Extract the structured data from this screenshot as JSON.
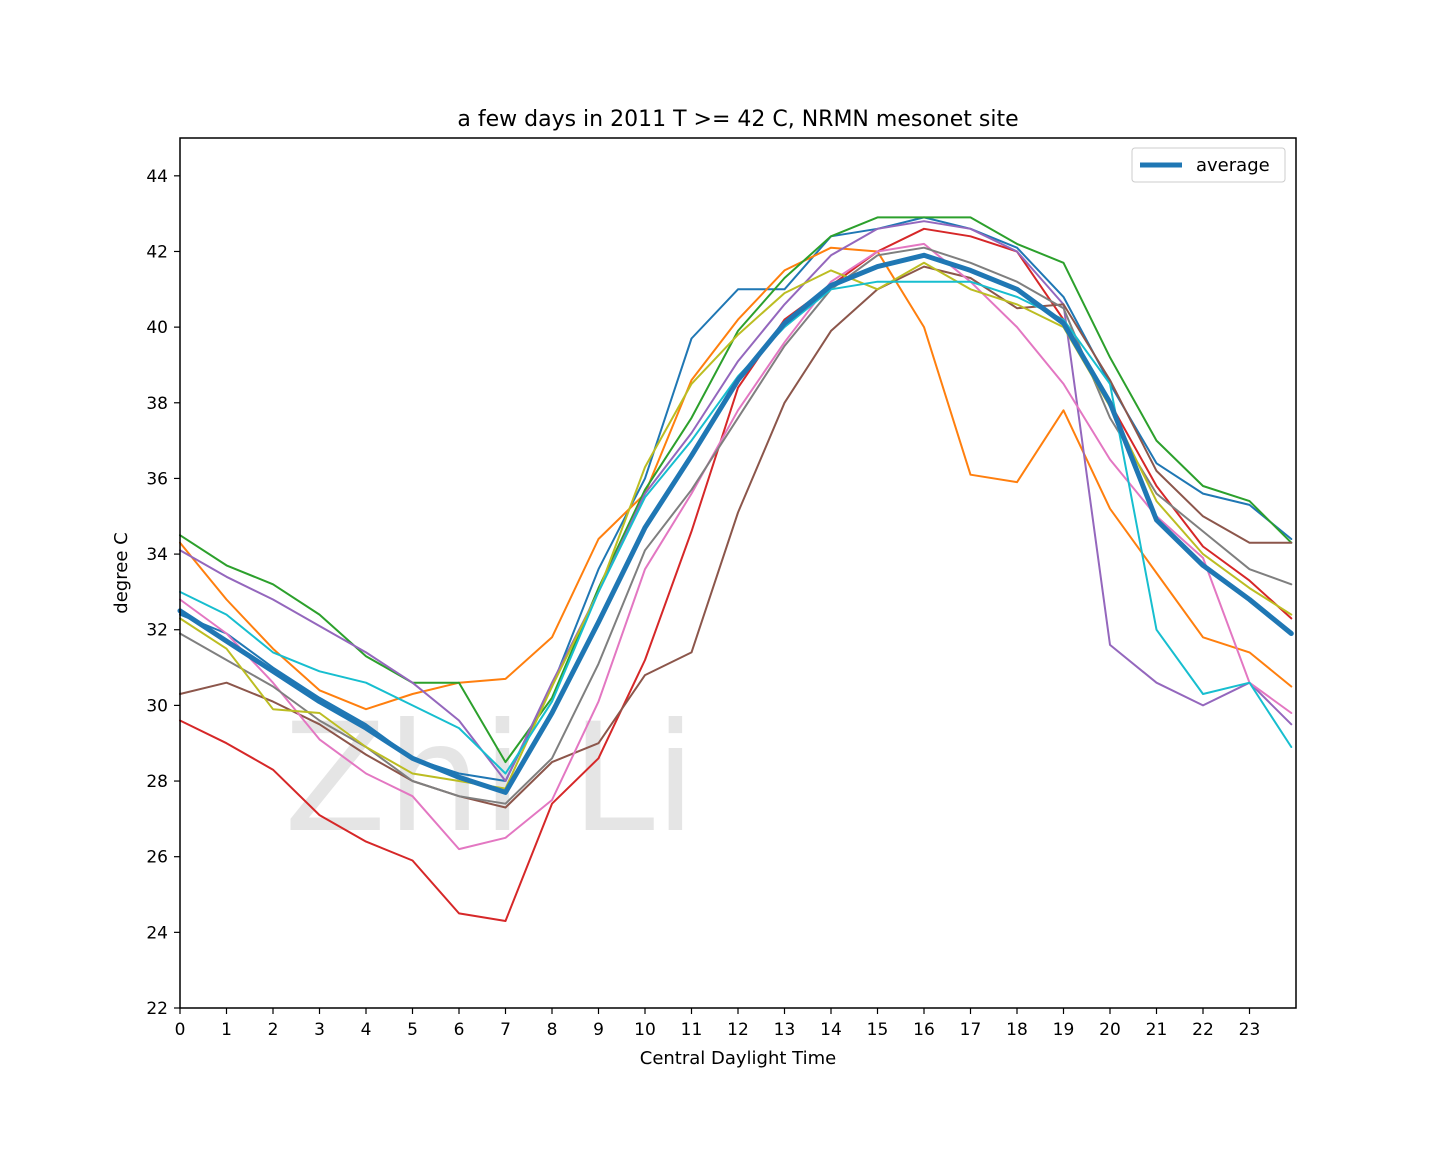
{
  "chart_data": {
    "type": "line",
    "title": "a few days in 2011 T >= 42 C, NRMN mesonet site",
    "xlabel": "Central Daylight Time",
    "ylabel": "degree C",
    "xlim": [
      0,
      24
    ],
    "ylim": [
      22,
      45
    ],
    "xticks": [
      0,
      1,
      2,
      3,
      4,
      5,
      6,
      7,
      8,
      9,
      10,
      11,
      12,
      13,
      14,
      15,
      16,
      17,
      18,
      19,
      20,
      21,
      22,
      23
    ],
    "yticks": [
      22,
      24,
      26,
      28,
      30,
      32,
      34,
      36,
      38,
      40,
      42,
      44
    ],
    "grid": false,
    "legend": {
      "position": "top-right",
      "entries": [
        "average"
      ]
    },
    "watermark": "Zhi Li",
    "x": [
      0,
      1,
      2,
      3,
      4,
      5,
      6,
      7,
      8,
      9,
      10,
      11,
      12,
      13,
      14,
      15,
      16,
      17,
      18,
      19,
      20,
      21,
      22,
      23,
      23.9
    ],
    "series": [
      {
        "color": "#1f77b4",
        "width": 2,
        "values": [
          32.4,
          31.9,
          31.0,
          30.2,
          29.5,
          28.6,
          28.2,
          28.0,
          30.5,
          33.6,
          36.0,
          39.7,
          41.0,
          41.0,
          42.4,
          42.6,
          42.9,
          42.6,
          42.1,
          40.8,
          38.5,
          36.4,
          35.6,
          35.3,
          34.4
        ]
      },
      {
        "color": "#ff7f0e",
        "width": 2,
        "values": [
          34.3,
          32.8,
          31.5,
          30.4,
          29.9,
          30.3,
          30.6,
          30.7,
          31.8,
          34.4,
          35.6,
          38.6,
          40.2,
          41.5,
          42.1,
          42.0,
          40.0,
          36.1,
          35.9,
          37.8,
          35.2,
          33.5,
          31.8,
          31.4,
          30.5
        ]
      },
      {
        "color": "#2ca02c",
        "width": 2,
        "values": [
          34.5,
          33.7,
          33.2,
          32.4,
          31.3,
          30.6,
          30.6,
          28.5,
          30.2,
          33.1,
          35.7,
          37.6,
          39.9,
          41.3,
          42.4,
          42.9,
          42.9,
          42.9,
          42.2,
          41.7,
          39.2,
          37.0,
          35.8,
          35.4,
          34.3
        ]
      },
      {
        "color": "#d62728",
        "width": 2,
        "values": [
          29.6,
          29.0,
          28.3,
          27.1,
          26.4,
          25.9,
          24.5,
          24.3,
          27.4,
          28.6,
          31.2,
          34.6,
          38.4,
          40.2,
          41.1,
          42.0,
          42.6,
          42.4,
          42.0,
          40.2,
          38.0,
          35.8,
          34.2,
          33.3,
          32.3
        ]
      },
      {
        "color": "#9467bd",
        "width": 2,
        "values": [
          34.1,
          33.4,
          32.8,
          32.1,
          31.4,
          30.6,
          29.6,
          28.0,
          30.6,
          33.0,
          35.6,
          37.2,
          39.1,
          40.6,
          41.9,
          42.6,
          42.8,
          42.6,
          42.0,
          40.6,
          31.6,
          30.6,
          30.0,
          30.6,
          29.5
        ]
      },
      {
        "color": "#8c564b",
        "width": 2,
        "values": [
          30.3,
          30.6,
          30.1,
          29.5,
          28.7,
          28.0,
          27.6,
          27.3,
          28.5,
          29.0,
          30.8,
          31.4,
          35.1,
          38.0,
          39.9,
          41.0,
          41.6,
          41.3,
          40.5,
          40.6,
          38.6,
          36.2,
          35.0,
          34.3,
          34.3
        ]
      },
      {
        "color": "#e377c2",
        "width": 2,
        "values": [
          32.8,
          31.9,
          30.6,
          29.1,
          28.2,
          27.6,
          26.2,
          26.5,
          27.5,
          30.1,
          33.6,
          35.6,
          37.8,
          39.6,
          41.2,
          42.0,
          42.2,
          41.2,
          40.0,
          38.5,
          36.5,
          35.0,
          33.9,
          30.6,
          29.8
        ]
      },
      {
        "color": "#7f7f7f",
        "width": 2,
        "values": [
          31.9,
          31.2,
          30.5,
          29.6,
          28.9,
          28.0,
          27.6,
          27.4,
          28.6,
          31.1,
          34.1,
          35.7,
          37.6,
          39.5,
          41.0,
          41.9,
          42.1,
          41.7,
          41.2,
          40.5,
          37.6,
          35.6,
          34.6,
          33.6,
          33.2
        ]
      },
      {
        "color": "#bcbd22",
        "width": 2,
        "values": [
          32.3,
          31.5,
          29.9,
          29.8,
          28.9,
          28.2,
          28.0,
          27.8,
          30.5,
          33.0,
          36.3,
          38.5,
          39.8,
          40.9,
          41.5,
          41.0,
          41.7,
          41.0,
          40.6,
          40.0,
          37.9,
          35.4,
          34.0,
          33.1,
          32.4
        ]
      },
      {
        "color": "#17becf",
        "width": 2,
        "values": [
          33.0,
          32.4,
          31.4,
          30.9,
          30.6,
          30.0,
          29.4,
          28.2,
          30.1,
          33.0,
          35.5,
          37.0,
          38.7,
          40.0,
          41.0,
          41.2,
          41.2,
          41.2,
          40.8,
          40.2,
          38.5,
          32.0,
          30.3,
          30.6,
          28.9
        ]
      },
      {
        "name": "average",
        "color": "#1f77b4",
        "width": 5,
        "values": [
          32.5,
          31.7,
          30.9,
          30.1,
          29.4,
          28.6,
          28.1,
          27.7,
          29.8,
          32.2,
          34.7,
          36.6,
          38.6,
          40.1,
          41.1,
          41.6,
          41.9,
          41.5,
          41.0,
          40.1,
          38.0,
          34.9,
          33.7,
          32.8,
          31.9
        ]
      }
    ]
  }
}
